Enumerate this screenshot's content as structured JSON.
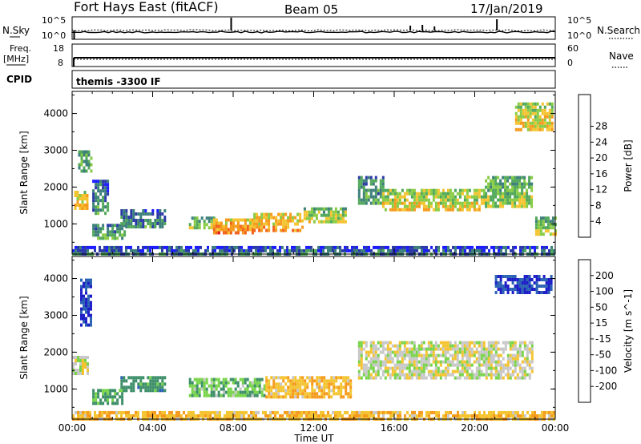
{
  "header": {
    "station": "Fort Hays East (fitACF)",
    "beam": "Beam 05",
    "date": "17/Jan/2019"
  },
  "strips": {
    "nsky_label": "N.Sky",
    "nsky_ticks": [
      "10^5",
      "10^0"
    ],
    "nsearch_label": "N.Search",
    "nsearch_ticks": [
      "10^5",
      "10^0"
    ],
    "freq_label_1": "Freq.",
    "freq_label_2": "[MHz]",
    "freq_ticks": [
      "18",
      "8"
    ],
    "nave_label": "Nave",
    "nave_ticks": [
      "60",
      "0"
    ],
    "cpid_label": "CPID",
    "cpid_value": "themis -3300 IF"
  },
  "chart_data": [
    {
      "type": "heatmap",
      "title": "",
      "xlabel": "",
      "ylabel": "Slant Range [km]",
      "xlim": [
        "00:00",
        "24:00"
      ],
      "ylim": [
        180,
        4600
      ],
      "yticks": [
        "1000",
        "2000",
        "3000",
        "4000"
      ],
      "colorbar_label": "Power [dB]",
      "colorbar_ticks": [
        "4",
        "8",
        "12",
        "16",
        "20",
        "24",
        "28"
      ],
      "colorbar_colors": [
        "#1c1cff",
        "#2c3aa8",
        "#3d7f7a",
        "#51a85a",
        "#88cc44",
        "#f4c430",
        "#f59a1c",
        "#f2621a",
        "#e11a14"
      ],
      "regions": [
        {
          "t": [
            0.1,
            0.8
          ],
          "r": [
            1400,
            1900
          ],
          "value": 22
        },
        {
          "t": [
            0.3,
            0.9
          ],
          "r": [
            2400,
            3000
          ],
          "value": 14
        },
        {
          "t": [
            1.0,
            1.8
          ],
          "r": [
            1300,
            2200
          ],
          "value": 10
        },
        {
          "t": [
            1.0,
            2.6
          ],
          "r": [
            600,
            1000
          ],
          "value": 12
        },
        {
          "t": [
            2.4,
            4.6
          ],
          "r": [
            900,
            1400
          ],
          "value": 10
        },
        {
          "t": [
            5.8,
            7.0
          ],
          "r": [
            900,
            1200
          ],
          "value": 16
        },
        {
          "t": [
            7.0,
            9.0
          ],
          "r": [
            750,
            1150
          ],
          "value": 26
        },
        {
          "t": [
            9.0,
            11.5
          ],
          "r": [
            850,
            1300
          ],
          "value": 24
        },
        {
          "t": [
            11.5,
            13.6
          ],
          "r": [
            1050,
            1450
          ],
          "value": 18
        },
        {
          "t": [
            14.2,
            15.4
          ],
          "r": [
            1550,
            2300
          ],
          "value": 12
        },
        {
          "t": [
            15.4,
            20.5
          ],
          "r": [
            1350,
            1950
          ],
          "value": 20
        },
        {
          "t": [
            20.5,
            22.8
          ],
          "r": [
            1500,
            2300
          ],
          "value": 16
        },
        {
          "t": [
            22.0,
            23.8
          ],
          "r": [
            3600,
            4300
          ],
          "value": 20
        },
        {
          "t": [
            23.0,
            24.0
          ],
          "r": [
            700,
            1200
          ],
          "value": 18
        },
        {
          "t": [
            0.0,
            24.0
          ],
          "r": [
            200,
            400
          ],
          "value": 8
        }
      ]
    },
    {
      "type": "heatmap",
      "title": "",
      "xlabel": "Time UT",
      "ylabel": "Slant Range [km]",
      "xlim": [
        "00:00",
        "24:00"
      ],
      "ylim": [
        180,
        4600
      ],
      "xticks": [
        "00:00",
        "04:00",
        "08:00",
        "12:00",
        "16:00",
        "20:00",
        "00:00"
      ],
      "yticks": [
        "1000",
        "2000",
        "3000",
        "4000"
      ],
      "colorbar_label": "Velocity [m s^-1]",
      "colorbar_ticks": [
        "200",
        "100",
        "50",
        "15",
        "-15",
        "-50",
        "-100",
        "-200"
      ],
      "colorbar_colors": [
        "#1d1dc8",
        "#2a62b4",
        "#3d8f6a",
        "#78d44a",
        "#c8c8c8",
        "#f4c430",
        "#f59a1c",
        "#f2621a",
        "#e11a14"
      ],
      "regions": [
        {
          "t": [
            0.0,
            0.8
          ],
          "r": [
            1450,
            1900
          ],
          "value": 0
        },
        {
          "t": [
            0.4,
            0.9
          ],
          "r": [
            2700,
            4000
          ],
          "value": 200
        },
        {
          "t": [
            1.0,
            2.5
          ],
          "r": [
            600,
            1000
          ],
          "value": 60
        },
        {
          "t": [
            2.4,
            4.6
          ],
          "r": [
            950,
            1350
          ],
          "value": 75
        },
        {
          "t": [
            5.8,
            9.6
          ],
          "r": [
            800,
            1300
          ],
          "value": 40
        },
        {
          "t": [
            9.6,
            13.8
          ],
          "r": [
            800,
            1350
          ],
          "value": -40
        },
        {
          "t": [
            14.2,
            22.9
          ],
          "r": [
            1300,
            2300
          ],
          "value": 0
        },
        {
          "t": [
            21.0,
            23.8
          ],
          "r": [
            3600,
            4100
          ],
          "value": 200
        },
        {
          "t": [
            0.0,
            24.0
          ],
          "r": [
            200,
            400
          ],
          "value": -40
        }
      ]
    }
  ]
}
